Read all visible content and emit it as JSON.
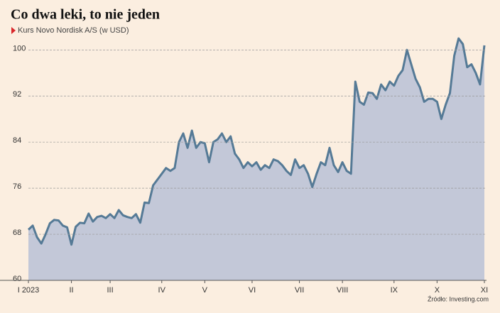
{
  "chart_data": {
    "type": "area",
    "title": "Co dwa leki, to nie jeden",
    "subtitle": "Kurs Novo Nordisk A/S (w USD)",
    "source": "Źródło: Investing.com",
    "categories": [
      "I 2023",
      null,
      null,
      null,
      null,
      null,
      null,
      null,
      null,
      null,
      "II",
      null,
      null,
      null,
      null,
      null,
      null,
      null,
      null,
      "III",
      null,
      null,
      null,
      null,
      null,
      null,
      null,
      null,
      null,
      null,
      null,
      "IV",
      null,
      null,
      null,
      null,
      null,
      null,
      null,
      null,
      null,
      "V",
      null,
      null,
      null,
      null,
      null,
      null,
      null,
      null,
      null,
      null,
      "VI",
      null,
      null,
      null,
      null,
      null,
      null,
      null,
      null,
      null,
      null,
      "VII",
      null,
      null,
      null,
      null,
      null,
      null,
      null,
      null,
      null,
      "VIII",
      null,
      null,
      null,
      null,
      null,
      null,
      null,
      null,
      null,
      null,
      null,
      "IX",
      null,
      null,
      null,
      null,
      null,
      null,
      null,
      null,
      null,
      "X",
      null,
      null,
      null,
      null,
      null,
      null,
      null,
      null,
      null,
      null,
      "XI"
    ],
    "values": [
      68.8,
      69.5,
      67.5,
      66.4,
      68,
      69.9,
      70.5,
      70.4,
      69.5,
      69.2,
      66.2,
      69.3,
      70,
      69.9,
      71.6,
      70.2,
      71,
      71.2,
      70.8,
      71.5,
      70.8,
      72.2,
      71.3,
      71,
      70.8,
      71.5,
      70,
      73.5,
      73.4,
      76.5,
      77.5,
      78.5,
      79.5,
      79,
      79.5,
      84,
      85.5,
      83,
      86,
      83,
      84,
      83.8,
      80.5,
      84,
      84.5,
      85.5,
      84,
      85,
      82,
      81,
      79.5,
      80.5,
      79.8,
      80.5,
      79.2,
      80,
      79.5,
      81,
      80.7,
      80,
      79,
      78.3,
      81,
      79.5,
      80,
      78.5,
      76.2,
      78.5,
      80.5,
      80,
      83,
      80,
      78.8,
      80.5,
      79,
      78.5,
      94.5,
      91,
      90.5,
      92.6,
      92.5,
      91.5,
      94,
      93,
      94.5,
      93.8,
      95.5,
      96.5,
      100,
      97.5,
      95,
      93.5,
      91,
      91.5,
      91.5,
      91,
      88,
      90.5,
      92.5,
      99,
      102,
      101,
      97,
      97.5,
      96,
      94,
      100.8
    ],
    "line_color": "#557a96",
    "fill_color": "#c3c8d8",
    "ylim": [
      60,
      103
    ],
    "yticks": [
      60,
      68,
      76,
      84,
      92,
      100
    ],
    "grid": true
  }
}
